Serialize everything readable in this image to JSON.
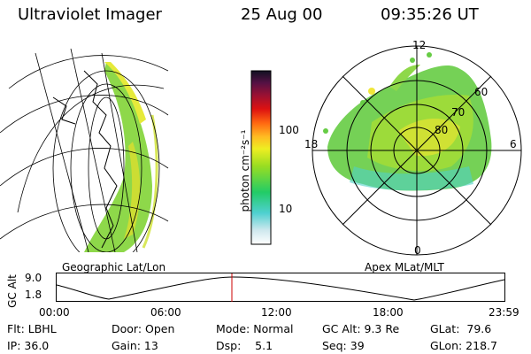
{
  "header": {
    "instrument": "Ultraviolet Imager",
    "date": "25 Aug 00",
    "time": "09:35:26 UT"
  },
  "colorbar": {
    "unit_label": "photon cm⁻²s⁻¹",
    "ticks": [
      "100",
      "10"
    ]
  },
  "polar_plot": {
    "mlt_labels": [
      "12",
      "18",
      "6",
      "0"
    ],
    "mlat_labels": [
      "60",
      "70",
      "80"
    ]
  },
  "panel_labels": {
    "left": "Geographic Lat/Lon",
    "right": "Apex MLat/MLT"
  },
  "altitude_plot": {
    "axis_label": "GC Alt",
    "ytick_top": "9.0",
    "ytick_bottom": "1.8",
    "time_ticks": [
      "00:00",
      "06:00",
      "12:00",
      "18:00",
      "23:59"
    ]
  },
  "status": {
    "filter": "Flt: LBHL",
    "ip": "IP: 36.0",
    "door": "Door: Open",
    "gain": "Gain: 13",
    "mode": "Mode: Normal",
    "dsp": "Dsp:    5.1",
    "gc_alt": "GC Alt: 9.3 Re",
    "seq": "Seq: 39",
    "glat": "GLat:  79.6",
    "glon": "GLon: 218.7"
  },
  "colors": {
    "orbit_marker": "#cc0000",
    "aurora_low": "#33cc44",
    "aurora_mid": "#99dd22",
    "aurora_high": "#eeee22"
  }
}
